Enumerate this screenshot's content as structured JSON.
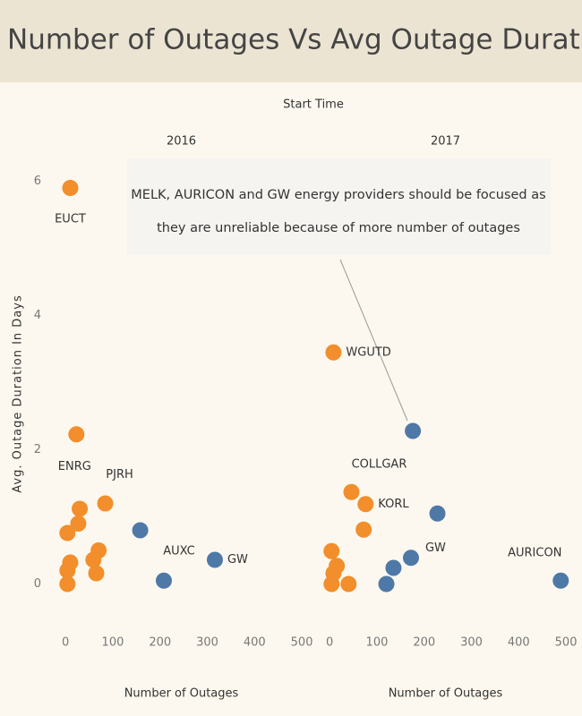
{
  "title": "Number of Outages Vs Avg Outage Duration",
  "column_header": "Start Time",
  "y_label": "Avg. Outage Duration In Days",
  "annotation": [
    "MELK, AURICON and GW energy providers should be focused as",
    "they are unreliable because of more number of outages"
  ],
  "chart_data": [
    {
      "type": "scatter",
      "panel": "2016",
      "x_label": "Number of Outages",
      "xlim": [
        -25,
        515
      ],
      "xticks": [
        0,
        100,
        200,
        300,
        400,
        500
      ],
      "ylim": [
        -0.3,
        6.3
      ],
      "yticks": [
        0,
        2,
        4,
        6
      ],
      "series": [
        {
          "color": "#f28e2b",
          "x": [
            10,
            23,
            84,
            30,
            27,
            4,
            70,
            59,
            10,
            4,
            65,
            4
          ],
          "values": [
            5.9,
            2.23,
            1.2,
            1.12,
            0.9,
            0.76,
            0.5,
            0.36,
            0.32,
            0.2,
            0.16,
            0
          ],
          "labels": [
            "EUCT",
            "ENRG",
            "PJRH",
            null,
            null,
            null,
            null,
            null,
            null,
            null,
            null,
            null
          ]
        },
        {
          "color": "#4e79a7",
          "x": [
            158,
            208,
            316
          ],
          "values": [
            0.8,
            0.05,
            0.36
          ],
          "labels": [
            null,
            "AUXC",
            "GW"
          ]
        }
      ]
    },
    {
      "type": "scatter",
      "panel": "2017",
      "x_label": "Number of Outages",
      "xlim": [
        -25,
        515
      ],
      "xticks": [
        0,
        100,
        200,
        300,
        400,
        500
      ],
      "ylim": [
        -0.3,
        6.3
      ],
      "series": [
        {
          "color": "#f28e2b",
          "x": [
            8,
            46,
            76,
            72,
            4,
            15,
            8,
            40,
            4
          ],
          "values": [
            3.45,
            1.37,
            1.19,
            0.81,
            0.49,
            0.27,
            0.16,
            0,
            0
          ],
          "labels": [
            "WGUTD",
            "COLLGAR",
            "KORL",
            null,
            null,
            null,
            null,
            null,
            null
          ]
        },
        {
          "color": "#4e79a7",
          "x": [
            176,
            228,
            172,
            135,
            120,
            489
          ],
          "values": [
            2.28,
            1.05,
            0.39,
            0.24,
            0,
            0.05
          ],
          "labels": [
            null,
            null,
            "GW",
            null,
            null,
            "AURICON"
          ]
        }
      ]
    }
  ]
}
